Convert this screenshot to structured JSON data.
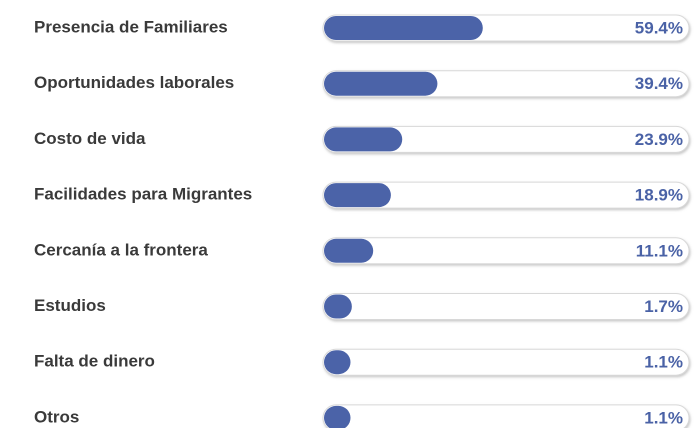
{
  "chart_data": {
    "type": "bar",
    "categories": [
      "Presencia de Familiares",
      "Oportunidades laborales",
      "Costo de vida",
      "Facilidades para Migrantes",
      "Cercanía a la frontera",
      "Estudios",
      "Falta de dinero",
      "Otros"
    ],
    "values": [
      59.4,
      39.4,
      23.9,
      18.9,
      11.1,
      1.7,
      1.1,
      1.1
    ],
    "value_labels": [
      "59.4%",
      "39.4%",
      "23.9%",
      "18.9%",
      "11.1%",
      "1.7%",
      "1.1%",
      "1.1%"
    ],
    "xlim": [
      0,
      100
    ],
    "color": "#4b63a8"
  }
}
